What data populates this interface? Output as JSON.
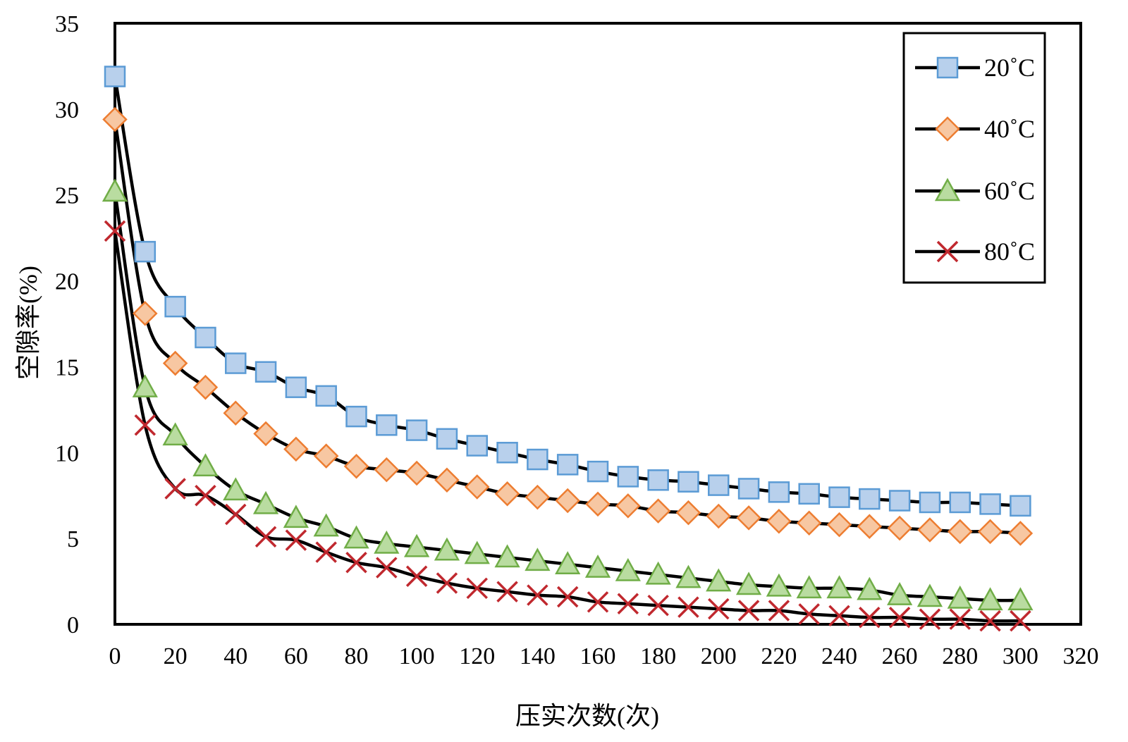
{
  "chart_data": {
    "type": "line",
    "title": "",
    "xlabel": "压实次数(次)",
    "ylabel": "空隙率(%)",
    "xlim": [
      0,
      320
    ],
    "ylim": [
      0,
      35
    ],
    "x_ticks": [
      "0",
      "20",
      "40",
      "60",
      "80",
      "100",
      "120",
      "140",
      "160",
      "180",
      "200",
      "220",
      "240",
      "260",
      "280",
      "300",
      "320"
    ],
    "y_ticks": [
      "0",
      "5",
      "10",
      "15",
      "20",
      "25",
      "30",
      "35"
    ],
    "grid": false,
    "legend_position": "top-right",
    "x": [
      0,
      10,
      20,
      30,
      40,
      50,
      60,
      70,
      80,
      90,
      100,
      110,
      120,
      130,
      140,
      150,
      160,
      170,
      180,
      190,
      200,
      210,
      220,
      230,
      240,
      250,
      260,
      270,
      280,
      290,
      300
    ],
    "series": [
      {
        "name": "20˚C",
        "marker": "square",
        "marker_fill": "#b8d0ec",
        "marker_stroke": "#5b9bd5",
        "values": [
          31.9,
          21.7,
          18.5,
          16.7,
          15.2,
          14.7,
          13.8,
          13.3,
          12.1,
          11.6,
          11.3,
          10.8,
          10.4,
          10.0,
          9.6,
          9.3,
          8.9,
          8.6,
          8.4,
          8.3,
          8.1,
          7.9,
          7.7,
          7.6,
          7.4,
          7.3,
          7.2,
          7.1,
          7.1,
          7.0,
          6.9
        ]
      },
      {
        "name": "40˚C",
        "marker": "diamond",
        "marker_fill": "#f7c7a2",
        "marker_stroke": "#ed7d31",
        "values": [
          29.4,
          18.1,
          15.2,
          13.8,
          12.3,
          11.1,
          10.2,
          9.8,
          9.2,
          9.0,
          8.8,
          8.4,
          8.0,
          7.6,
          7.4,
          7.2,
          7.0,
          6.9,
          6.6,
          6.5,
          6.3,
          6.2,
          6.0,
          5.9,
          5.8,
          5.7,
          5.6,
          5.5,
          5.4,
          5.4,
          5.3
        ]
      },
      {
        "name": "60˚C",
        "marker": "triangle",
        "marker_fill": "#b9dca0",
        "marker_stroke": "#70ad47",
        "values": [
          25.2,
          13.8,
          11.0,
          9.2,
          7.8,
          7.0,
          6.2,
          5.7,
          5.0,
          4.7,
          4.5,
          4.3,
          4.1,
          3.9,
          3.7,
          3.5,
          3.3,
          3.1,
          2.9,
          2.7,
          2.5,
          2.3,
          2.2,
          2.1,
          2.1,
          2.0,
          1.7,
          1.6,
          1.5,
          1.4,
          1.4
        ]
      },
      {
        "name": "80˚C",
        "marker": "x",
        "marker_fill": "none",
        "marker_stroke": "#c0282e",
        "values": [
          22.9,
          11.6,
          7.9,
          7.5,
          6.4,
          5.1,
          4.9,
          4.2,
          3.6,
          3.3,
          2.8,
          2.4,
          2.1,
          1.9,
          1.7,
          1.6,
          1.3,
          1.2,
          1.1,
          1.0,
          0.9,
          0.8,
          0.8,
          0.6,
          0.5,
          0.4,
          0.4,
          0.3,
          0.3,
          0.2,
          0.2
        ]
      }
    ]
  }
}
